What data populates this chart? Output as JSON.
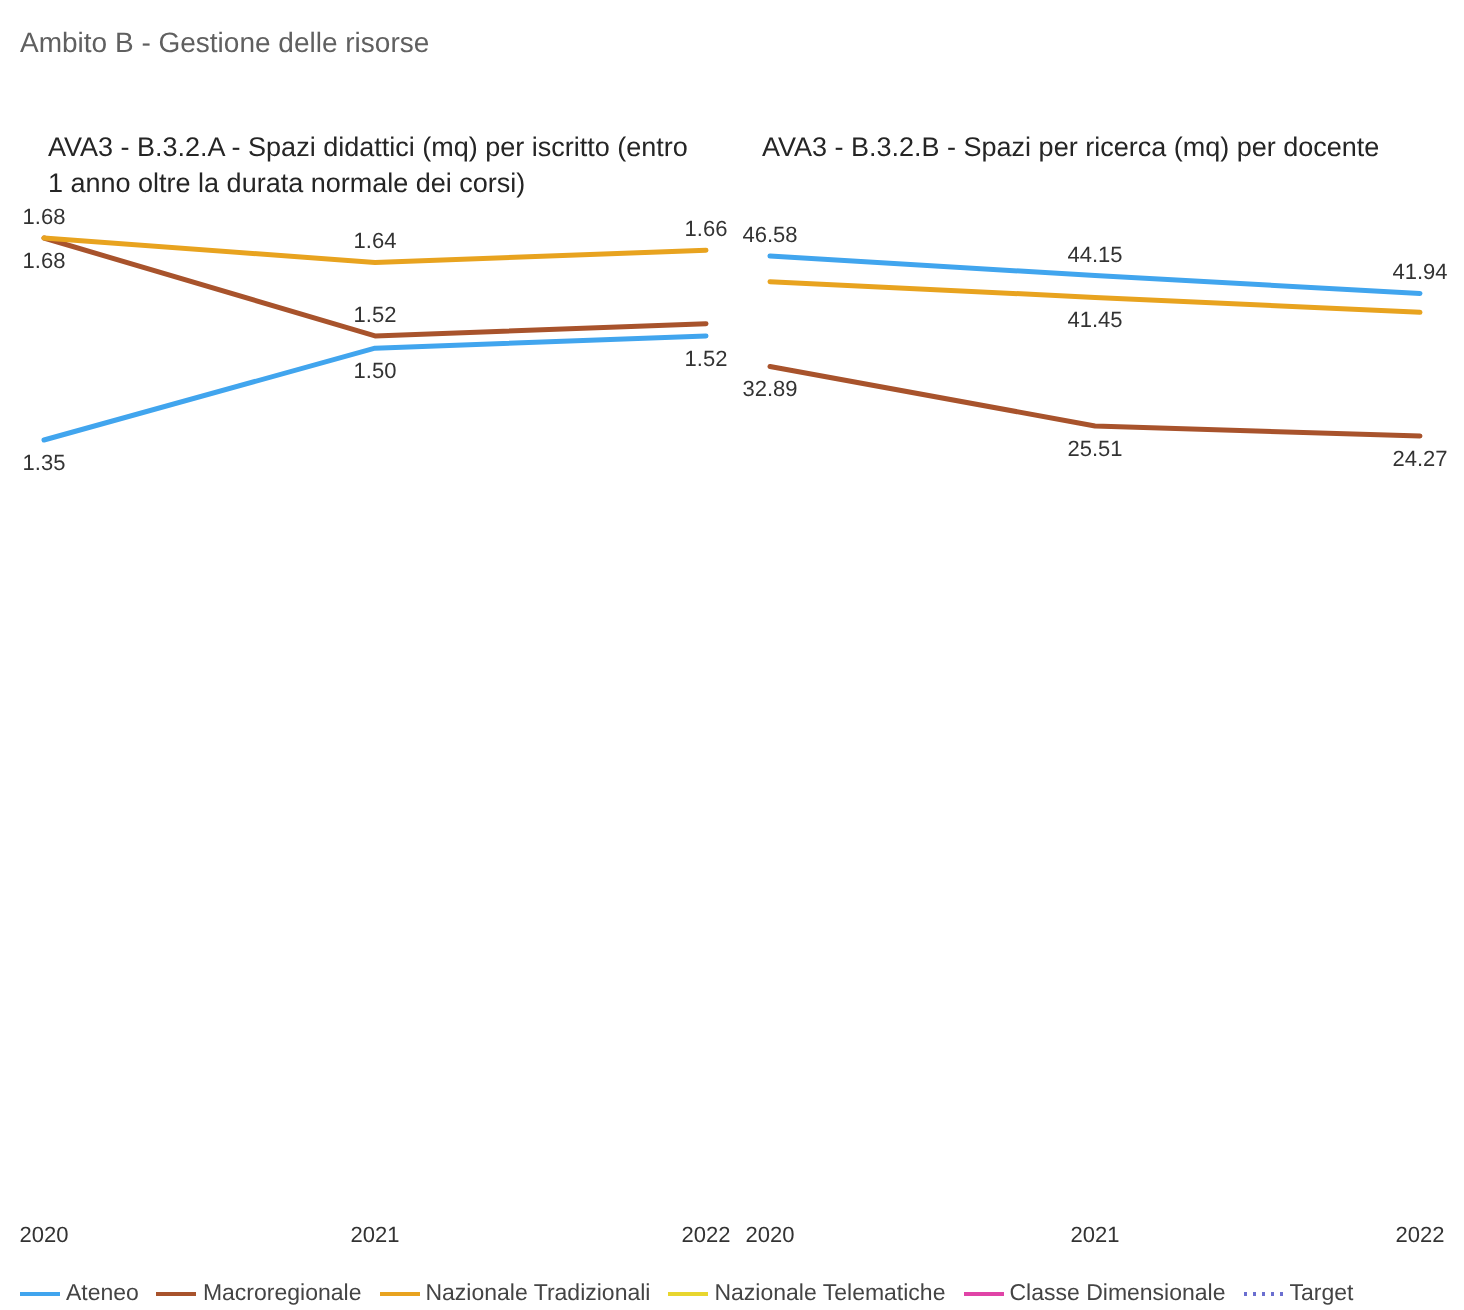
{
  "chart_data": [
    {
      "type": "line",
      "title": "Ambito B - Gestione delle risorse",
      "subtitle": "AVA3 - B.3.2.A - Spazi didattici (mq) per iscritto (entro 1 anno oltre la durata normale dei corsi)",
      "categories": [
        "2020",
        "2021",
        "2022"
      ],
      "series": [
        {
          "name": "Ateneo",
          "color": "#41a5ee",
          "values": [
            1.35,
            1.5,
            1.52
          ],
          "value_labels": [
            "1.35",
            "1.50",
            "1.52"
          ]
        },
        {
          "name": "Macroregionale",
          "color": "#a8532c",
          "values": [
            1.68,
            1.52,
            1.54
          ],
          "value_labels": [
            "1.68",
            "1.52",
            null
          ]
        },
        {
          "name": "Nazionale Tradizionali",
          "color": "#e8a31f",
          "values": [
            1.68,
            1.64,
            1.66
          ],
          "value_labels": [
            "1.68",
            "1.64",
            "1.66"
          ]
        },
        {
          "name": "Nazionale Telematiche",
          "color": "#e8d62e",
          "values": [
            null,
            null,
            null
          ]
        },
        {
          "name": "Classe Dimensionale",
          "color": "#e044a7",
          "values": [
            null,
            null,
            null
          ]
        },
        {
          "name": "Target",
          "color": "#6b6fd0",
          "values": [
            null,
            null,
            null
          ],
          "line_style": "dotted"
        }
      ],
      "tick_labels": "x",
      "legend": "bottom"
    },
    {
      "type": "line",
      "subtitle": "AVA3 - B.3.2.B - Spazi per ricerca (mq) per docente",
      "categories": [
        "2020",
        "2021",
        "2022"
      ],
      "series": [
        {
          "color": "#41a5ee",
          "values": [
            46.58,
            44.15,
            41.94
          ],
          "value_labels": [
            "46.58",
            "44.15",
            "41.94"
          ]
        },
        {
          "color": "#a8532c",
          "values": [
            32.89,
            25.51,
            24.27
          ],
          "value_labels": [
            "32.89",
            "25.51",
            "24.27"
          ]
        },
        {
          "color": "#e8a31f",
          "values": [
            43.4,
            41.45,
            39.6
          ],
          "value_labels": [
            null,
            "41.45",
            null
          ]
        }
      ],
      "tick_labels": "x"
    }
  ]
}
